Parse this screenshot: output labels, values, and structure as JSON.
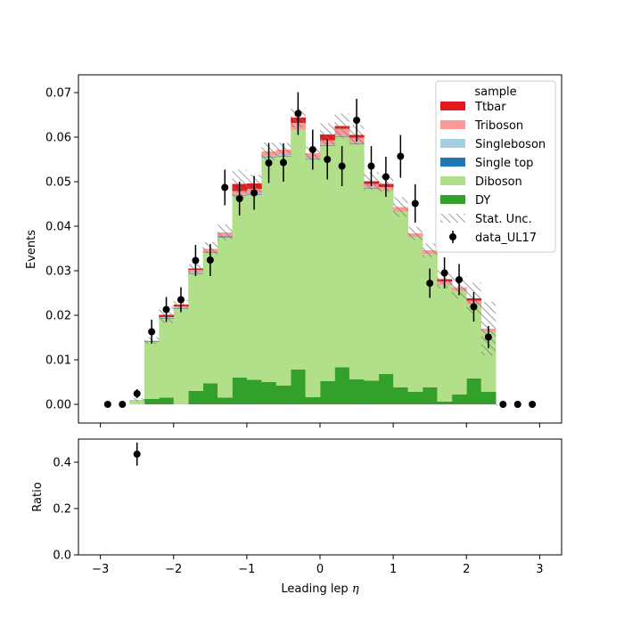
{
  "chart_data": [
    {
      "type": "bar",
      "stacked": true,
      "xlabel": "Leading lep $\\eta$",
      "xlabel_text": "Leading lep ",
      "xlabel_symbol": "η",
      "ylabel": "Events",
      "xlim": [
        -3.3,
        3.3
      ],
      "ylim": [
        -0.0042,
        0.074
      ],
      "xticks": [
        -3,
        -2,
        -1,
        0,
        1,
        2,
        3
      ],
      "xtick_labels": [
        "−3",
        "−2",
        "−1",
        "0",
        "1",
        "2",
        "3"
      ],
      "yticks": [
        0.0,
        0.01,
        0.02,
        0.03,
        0.04,
        0.05,
        0.06,
        0.07
      ],
      "ytick_labels": [
        "0.00",
        "0.01",
        "0.02",
        "0.03",
        "0.04",
        "0.05",
        "0.06",
        "0.07"
      ],
      "bin_edges": [
        -2.6,
        -2.4,
        -2.2,
        -2.0,
        -1.8,
        -1.6,
        -1.4,
        -1.2,
        -1.0,
        -0.8,
        -0.6,
        -0.4,
        -0.2,
        0.0,
        0.2,
        0.4,
        0.6,
        0.8,
        1.0,
        1.2,
        1.4,
        1.6,
        1.8,
        2.0,
        2.2,
        2.4,
        2.6
      ],
      "legend_title": "sample",
      "legend_position": "top-right",
      "series": [
        {
          "name": "DY",
          "color": "#33a02c",
          "values": [
            0.0,
            0.0012,
            0.0015,
            0.0,
            0.003,
            0.0047,
            0.0015,
            0.006,
            0.0055,
            0.005,
            0.0042,
            0.0078,
            0.0016,
            0.0052,
            0.0083,
            0.0056,
            0.0053,
            0.0068,
            0.0038,
            0.0028,
            0.0038,
            0.0006,
            0.0022,
            0.0058,
            0.0028,
            0.0
          ]
        },
        {
          "name": "Diboson",
          "color": "#b2df8a",
          "values": [
            0.001,
            0.0128,
            0.0178,
            0.0215,
            0.0263,
            0.0293,
            0.036,
            0.0408,
            0.0415,
            0.0505,
            0.0515,
            0.0538,
            0.0535,
            0.0528,
            0.0518,
            0.0528,
            0.0432,
            0.0412,
            0.0395,
            0.0348,
            0.03,
            0.0262,
            0.0233,
            0.0167,
            0.0135,
            0.0
          ]
        },
        {
          "name": "Single top",
          "color": "#1f78b4",
          "values": [
            0.0,
            0.0001,
            0.0001,
            0.0001,
            0.0001,
            0.0001,
            0.0002,
            0.0001,
            0.0001,
            0.0001,
            0.0001,
            0.0,
            0.0001,
            0.0001,
            0.0001,
            0.0001,
            0.0001,
            0.0,
            0.0,
            0.0,
            0.0,
            0.0,
            0.0,
            0.0,
            0.0,
            0.0
          ]
        },
        {
          "name": "Singleboson",
          "color": "#a6cee3",
          "values": [
            0.0,
            0.0002,
            0.0002,
            0.0001,
            0.0002,
            0.0001,
            0.0001,
            0.0002,
            0.0001,
            0.0002,
            0.0002,
            0.0001,
            0.0002,
            0.0002,
            0.0001,
            0.0002,
            0.0001,
            0.0,
            0.0,
            0.0,
            0.0,
            0.0,
            0.0,
            0.0,
            0.0,
            0.0
          ]
        },
        {
          "name": "Triboson",
          "color": "#fb9a99",
          "values": [
            0.0,
            0.0,
            0.0,
            0.0003,
            0.0006,
            0.0007,
            0.0008,
            0.0008,
            0.0012,
            0.001,
            0.0012,
            0.0015,
            0.001,
            0.001,
            0.0016,
            0.0012,
            0.0008,
            0.0008,
            0.001,
            0.0008,
            0.0008,
            0.0008,
            0.0008,
            0.0008,
            0.0007,
            0.0
          ]
        },
        {
          "name": "Ttbar",
          "color": "#e31a1c",
          "values": [
            0.0,
            0.0,
            0.0005,
            0.0004,
            0.0003,
            0.0,
            0.0,
            0.0016,
            0.0012,
            0.0,
            0.0,
            0.0012,
            0.0,
            0.0013,
            0.0006,
            0.0006,
            0.0006,
            0.0007,
            0.0,
            0.0,
            0.0,
            0.0005,
            0.0,
            0.0005,
            0.0,
            0.0
          ]
        }
      ],
      "stat_unc": {
        "name": "Stat. Unc.",
        "half_width": [
          0.0004,
          0.0008,
          0.0018,
          0.001,
          0.001,
          0.0015,
          0.0018,
          0.0032,
          0.002,
          0.002,
          0.0015,
          0.0022,
          0.0015,
          0.0025,
          0.0028,
          0.0022,
          0.002,
          0.0018,
          0.0022,
          0.0015,
          0.0015,
          0.002,
          0.0025,
          0.0035,
          0.006,
          0.0003
        ]
      },
      "data": {
        "name": "data_UL17",
        "x": [
          -2.9,
          -2.7,
          -2.5,
          -2.3,
          -2.1,
          -1.9,
          -1.7,
          -1.5,
          -1.3,
          -1.1,
          -0.9,
          -0.7,
          -0.5,
          -0.3,
          -0.1,
          0.1,
          0.3,
          0.5,
          0.7,
          0.9,
          1.1,
          1.3,
          1.5,
          1.7,
          1.9,
          2.1,
          2.3,
          2.5,
          2.7,
          2.9
        ],
        "y": [
          0.0,
          0.0,
          0.0024,
          0.0163,
          0.0213,
          0.0235,
          0.0323,
          0.0324,
          0.0487,
          0.0462,
          0.0475,
          0.0542,
          0.0543,
          0.0653,
          0.0572,
          0.055,
          0.0535,
          0.0638,
          0.0535,
          0.0511,
          0.0557,
          0.0451,
          0.0272,
          0.0295,
          0.028,
          0.0219,
          0.0151,
          0.0,
          0.0,
          0.0
        ],
        "err": [
          0.0,
          0.0,
          0.001,
          0.0027,
          0.0028,
          0.0028,
          0.0035,
          0.0036,
          0.004,
          0.0038,
          0.0038,
          0.0045,
          0.0043,
          0.0048,
          0.0045,
          0.0045,
          0.0045,
          0.0048,
          0.0045,
          0.0045,
          0.0048,
          0.0043,
          0.0033,
          0.0035,
          0.0035,
          0.0033,
          0.0025,
          0.0,
          0.0,
          0.0
        ]
      }
    },
    {
      "type": "scatter",
      "ylabel": "Ratio",
      "xlim": [
        -3.3,
        3.3
      ],
      "ylim": [
        0.0,
        0.5
      ],
      "yticks": [
        0.0,
        0.2,
        0.4
      ],
      "ytick_labels": [
        "0.0",
        "0.2",
        "0.4"
      ],
      "points": [
        {
          "x": -2.5,
          "y": 0.435,
          "err": 0.05
        }
      ]
    }
  ]
}
